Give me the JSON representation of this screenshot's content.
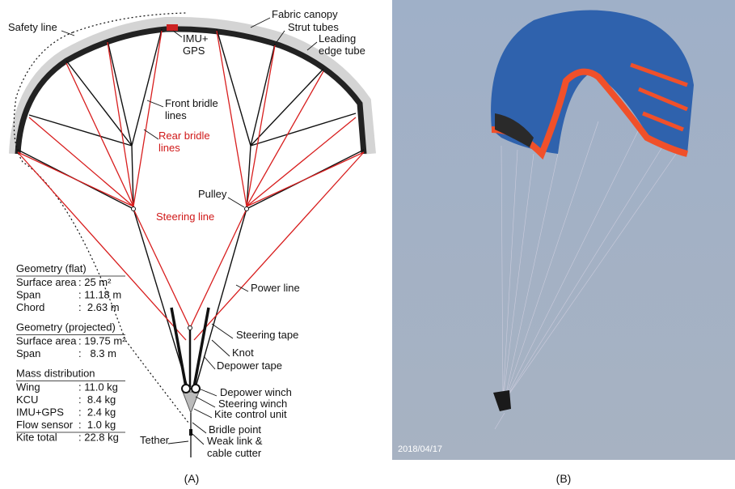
{
  "panel_a": {
    "caption": "(A)",
    "labels": [
      {
        "lines": [
          "Fabric canopy"
        ]
      },
      {
        "lines": [
          "Strut tubes"
        ]
      },
      {
        "lines": [
          "Leading",
          "edge tube"
        ]
      },
      {
        "lines": [
          "Safety line"
        ]
      },
      {
        "lines": [
          "IMU+",
          "GPS"
        ]
      },
      {
        "lines": [
          "Front bridle",
          "lines"
        ]
      },
      {
        "lines": [
          "Rear bridle",
          "lines"
        ]
      },
      {
        "lines": [
          "Pulley"
        ]
      },
      {
        "lines": [
          "Steering line"
        ]
      },
      {
        "lines": [
          "Power line"
        ]
      },
      {
        "lines": [
          "Steering tape"
        ]
      },
      {
        "lines": [
          "Knot"
        ]
      },
      {
        "lines": [
          "Depower tape"
        ]
      },
      {
        "lines": [
          "Depower winch"
        ]
      },
      {
        "lines": [
          "Steering winch"
        ]
      },
      {
        "lines": [
          "Kite control unit"
        ]
      },
      {
        "lines": [
          "Bridle point"
        ]
      },
      {
        "lines": [
          "Tether"
        ]
      },
      {
        "lines": [
          "Weak link &",
          "cable cutter"
        ]
      }
    ],
    "table": {
      "sections": [
        {
          "title": "Geometry (flat)",
          "rows": [
            [
              "Surface area",
              ": 25 m²"
            ],
            [
              "Span",
              ": 11.18 m"
            ],
            [
              "Chord",
              ":  2.63 m"
            ]
          ]
        },
        {
          "title": "Geometry (projected)",
          "rows": [
            [
              "Surface area",
              ": 19.75 m²"
            ],
            [
              "Span",
              ":   8.3 m"
            ]
          ]
        },
        {
          "title": "Mass distribution",
          "rows": [
            [
              "Wing",
              ": 11.0 kg"
            ],
            [
              "KCU",
              ":  8.4 kg"
            ],
            [
              "IMU+GPS",
              ":  2.4 kg"
            ],
            [
              "Flow sensor",
              ":  1.0 kg"
            ],
            [
              "Kite total",
              ": 22.8 kg"
            ]
          ]
        }
      ]
    }
  },
  "panel_b": {
    "caption": "(B)",
    "date": "2018/04/17"
  }
}
